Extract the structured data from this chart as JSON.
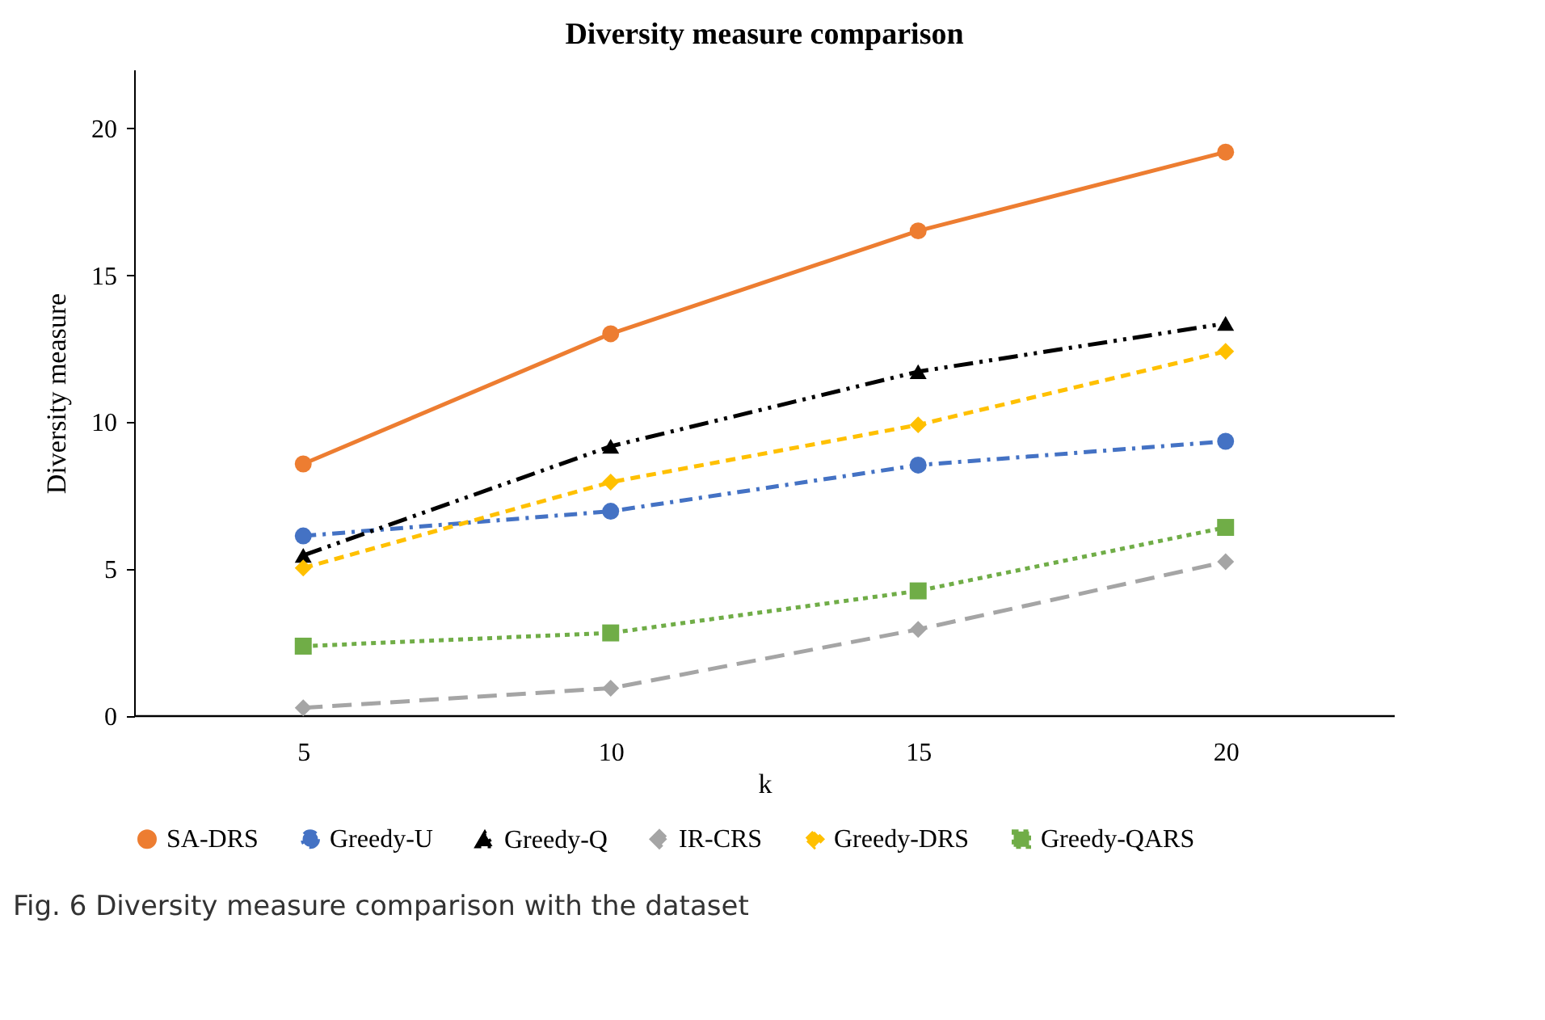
{
  "chart_data": {
    "type": "line",
    "title": "Diversity measure comparison",
    "xlabel": "k",
    "ylabel": "Diversity measure",
    "categories": [
      "5",
      "10",
      "15",
      "20"
    ],
    "series": [
      {
        "name": "SA-DRS",
        "color": "#ed7d31",
        "marker": "circle",
        "line_style": "solid",
        "values": [
          8.58,
          13.01,
          16.51,
          19.19
        ]
      },
      {
        "name": "Greedy-U",
        "color": "#4472c4",
        "marker": "circle",
        "line_style": "dashdot",
        "values": [
          6.13,
          6.97,
          8.54,
          9.35
        ]
      },
      {
        "name": "Greedy-Q",
        "color": "#000000",
        "marker": "triangle",
        "line_style": "dashdotdot",
        "values": [
          5.47,
          9.18,
          11.72,
          13.36
        ]
      },
      {
        "name": "IR-CRS",
        "color": "#a5a5a5",
        "marker": "diamond",
        "line_style": "longdash",
        "values": [
          0.28,
          0.95,
          2.95,
          5.25
        ]
      },
      {
        "name": "Greedy-DRS",
        "color": "#ffc000",
        "marker": "diamond",
        "line_style": "dashed",
        "values": [
          5.04,
          7.96,
          9.91,
          12.41
        ]
      },
      {
        "name": "Greedy-QARS",
        "color": "#70ad47",
        "marker": "square",
        "line_style": "dotted",
        "values": [
          2.38,
          2.83,
          4.26,
          6.42
        ]
      }
    ],
    "ylim": [
      0,
      22
    ],
    "yticks": [
      0,
      5,
      10,
      15,
      20
    ],
    "grid": false,
    "legend": "bottom",
    "annotations": [
      "Fig. 6 Diversity measure comparison with the dataset"
    ]
  }
}
